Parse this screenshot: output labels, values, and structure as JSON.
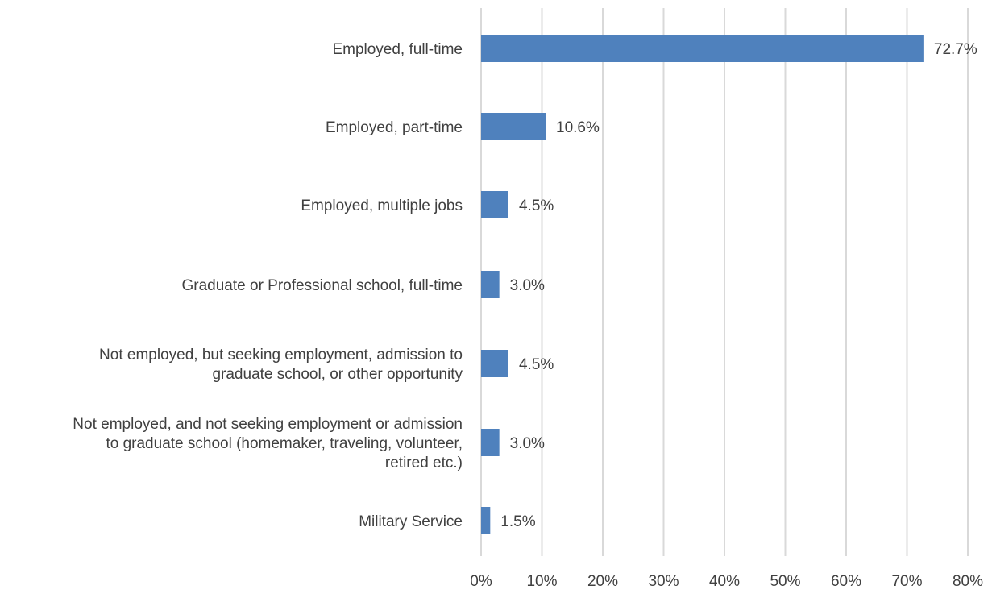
{
  "chart_data": {
    "type": "bar",
    "orientation": "horizontal",
    "categories": [
      [
        "Employed, full-time"
      ],
      [
        "Employed, part-time"
      ],
      [
        "Employed, multiple jobs"
      ],
      [
        "Graduate or Professional school, full-time"
      ],
      [
        "Not employed, but seeking employment, admission to",
        "graduate school, or other opportunity"
      ],
      [
        "Not employed, and not seeking employment or admission",
        "to graduate school (homemaker, traveling, volunteer,",
        "retired etc.)"
      ],
      [
        "Military Service"
      ]
    ],
    "values": [
      72.7,
      10.6,
      4.5,
      3.0,
      4.5,
      3.0,
      1.5
    ],
    "value_labels": [
      "72.7%",
      "10.6%",
      "4.5%",
      "3.0%",
      "4.5%",
      "3.0%",
      "1.5%"
    ],
    "xticks": [
      0,
      10,
      20,
      30,
      40,
      50,
      60,
      70,
      80
    ],
    "xtick_labels": [
      "0%",
      "10%",
      "20%",
      "30%",
      "40%",
      "50%",
      "60%",
      "70%",
      "80%"
    ],
    "xlim": [
      0,
      80
    ],
    "title": "",
    "xlabel": "",
    "ylabel": "",
    "grid": true,
    "legend": "none",
    "colors": {
      "bar": "#4f81bd",
      "grid": "#d9d9d9",
      "text": "#404040"
    }
  }
}
